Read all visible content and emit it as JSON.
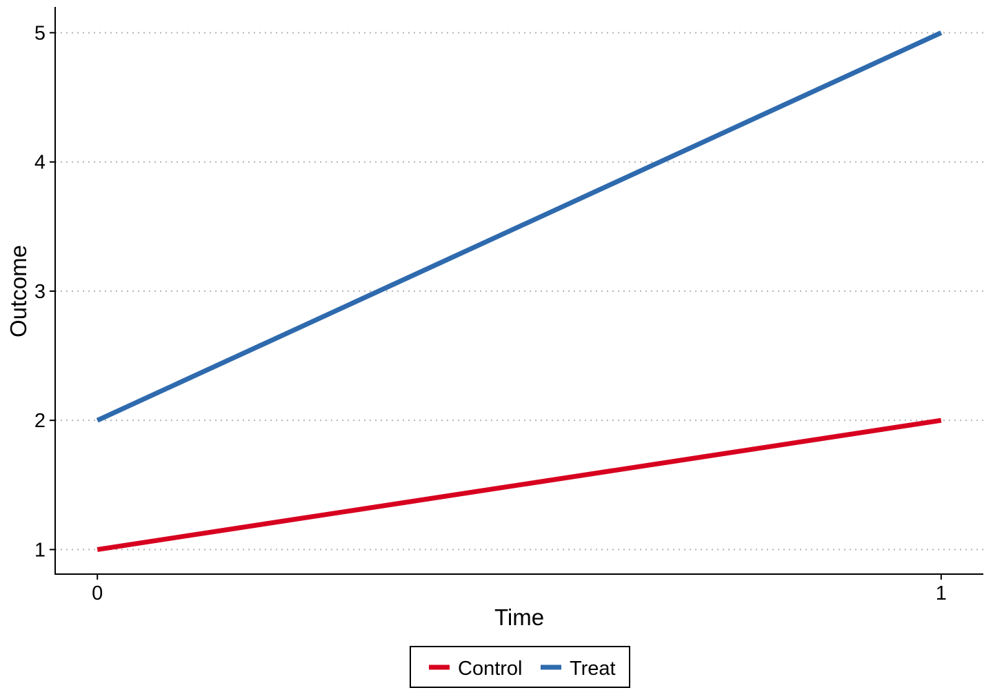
{
  "chart_data": {
    "type": "line",
    "title": "",
    "xlabel": "Time",
    "ylabel": "Outcome",
    "x": [
      0,
      1
    ],
    "x_ticks": [
      0,
      1
    ],
    "x_tick_labels": [
      "0",
      "1"
    ],
    "xlim": [
      -0.05,
      1.05
    ],
    "y_ticks": [
      1,
      2,
      3,
      4,
      5
    ],
    "y_tick_labels": [
      "1",
      "2",
      "3",
      "4",
      "5"
    ],
    "ylim": [
      0.81,
      5.2
    ],
    "grid": "horizontal dotted",
    "legend_position": "bottom",
    "series": [
      {
        "name": "Control",
        "color": "#d7001f",
        "x": [
          0,
          1
        ],
        "values": [
          1,
          2
        ]
      },
      {
        "name": "Treat",
        "color": "#2e6aad",
        "x": [
          0,
          1
        ],
        "values": [
          2,
          5
        ]
      }
    ]
  }
}
